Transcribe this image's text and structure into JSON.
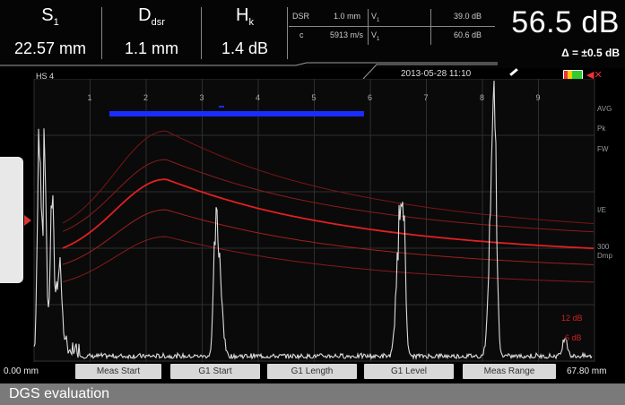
{
  "measurements": [
    {
      "label": "S",
      "sub": "1",
      "value": "22.57 mm"
    },
    {
      "label": "D",
      "sub": "dsr",
      "value": "1.1 mm"
    },
    {
      "label": "H",
      "sub": "k",
      "value": "1.4 dB"
    }
  ],
  "params": {
    "dsr_label": "DSR",
    "dsr_value": "1.0 mm",
    "v1_label": "V",
    "v1_sub": "1",
    "v1_value": "39.0 dB",
    "c_label": "c",
    "c_value": "5913 m/s",
    "v2_label": "V",
    "v2_sub": "1",
    "v2_value": "60.6 dB"
  },
  "gain": "56.5 dB",
  "delta": "Δ = ±0.5 dB",
  "datetime": "2013-05-28 11:10",
  "probe": "HS 4",
  "scale_numbers": [
    "1",
    "2",
    "3",
    "4",
    "5",
    "6",
    "7",
    "8",
    "9"
  ],
  "right_labels": [
    "AVG",
    "Pk",
    "FW",
    "I/E",
    "300",
    "Dmp"
  ],
  "curve_labels": [
    "12 dB",
    "6 dB"
  ],
  "x_start": "0.00 mm",
  "x_end": "67.80 mm",
  "buttons": [
    "Meas Start",
    "G1 Start",
    "G1 Length",
    "G1 Level",
    "Meas Range"
  ],
  "caption": "DGS evaluation",
  "colors": {
    "gate": "#1a2cff",
    "dgs_curve": "#e02020",
    "signal": "#dcdcdc"
  },
  "icons": [
    "pen-icon",
    "battery-icon",
    "speaker-mute-icon"
  ]
}
